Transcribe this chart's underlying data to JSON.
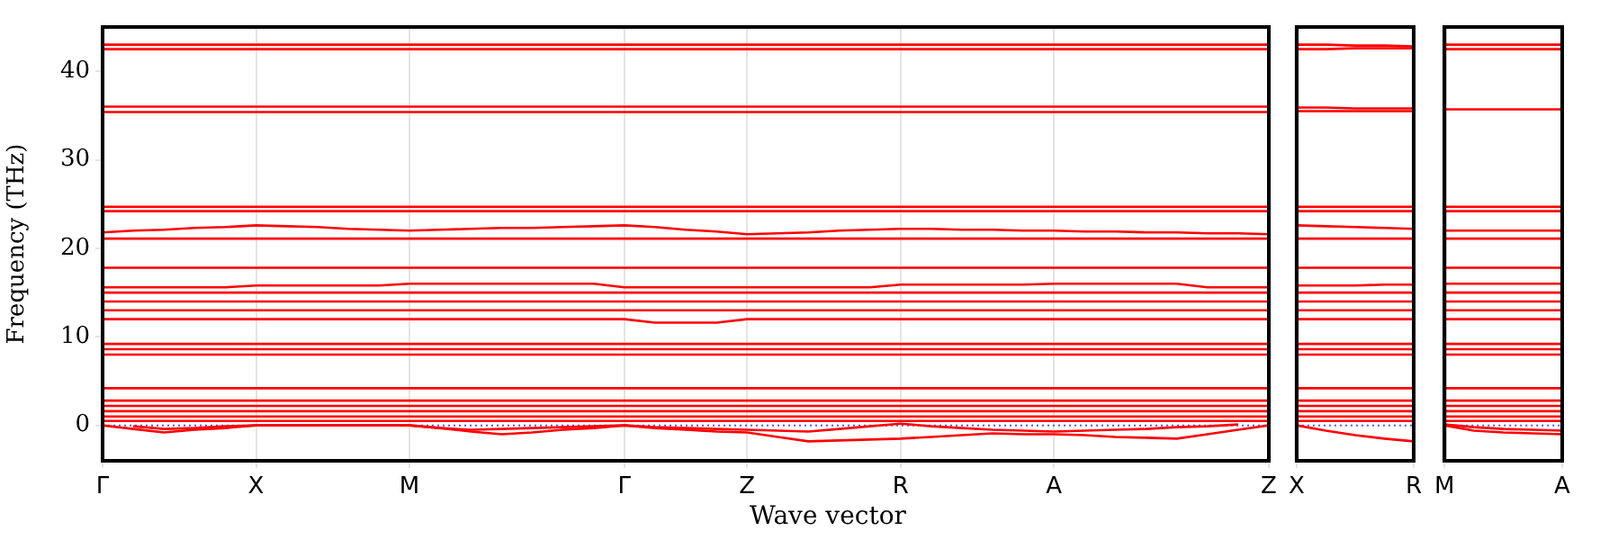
{
  "chart_data": [
    {
      "type": "line",
      "ylabel": "Frequency (THz)",
      "xlabel": "Wave vector",
      "grid": "x",
      "categories": [
        "Γ",
        null,
        null,
        null,
        null,
        "X",
        null,
        null,
        null,
        null,
        "M",
        null,
        null,
        null,
        null,
        null,
        null,
        "Γ",
        null,
        null,
        null,
        "Z",
        null,
        null,
        null,
        null,
        "R",
        null,
        null,
        null,
        null,
        "A",
        null,
        null,
        null,
        null,
        null,
        null,
        "Z"
      ],
      "ylim": [
        -4,
        45
      ],
      "yticks": [
        0,
        10,
        20,
        30,
        40
      ],
      "ref_lines": [
        {
          "axis": "y",
          "value": 0,
          "color": "#5555ff",
          "line_style": "dotted"
        }
      ],
      "series": [
        {
          "color": "#ff0000",
          "values": [
            43.0,
            43.0,
            43.0,
            43.0,
            43.0,
            43.0,
            43.0,
            43.0,
            43.0,
            43.0,
            43.0,
            43.0,
            43.0,
            43.0,
            43.0,
            43.0,
            43.0,
            43.0,
            43.0,
            43.0,
            43.0,
            43.0,
            43.0,
            43.0,
            43.0,
            43.0,
            43.0,
            43.0,
            43.0,
            43.0,
            43.0,
            43.0,
            43.0,
            43.0,
            43.0,
            43.0,
            43.0,
            43.0,
            43.0
          ]
        },
        {
          "color": "#ff0000",
          "values": [
            42.5,
            42.5,
            42.5,
            42.5,
            42.5,
            42.5,
            42.5,
            42.5,
            42.5,
            42.5,
            42.5,
            42.5,
            42.5,
            42.5,
            42.5,
            42.5,
            42.5,
            42.5,
            42.5,
            42.5,
            42.5,
            42.5,
            42.5,
            42.5,
            42.5,
            42.5,
            42.5,
            42.5,
            42.5,
            42.5,
            42.5,
            42.5,
            42.5,
            42.5,
            42.5,
            42.5,
            42.5,
            42.5,
            42.5
          ]
        },
        {
          "color": "#ff0000",
          "values": [
            36.0,
            36.0,
            36.0,
            36.0,
            36.0,
            36.0,
            36.0,
            36.0,
            36.0,
            36.0,
            36.0,
            36.0,
            36.0,
            36.0,
            36.0,
            36.0,
            36.0,
            36.0,
            36.0,
            36.0,
            36.0,
            36.0,
            36.0,
            36.0,
            36.0,
            36.0,
            36.0,
            36.0,
            36.0,
            36.0,
            36.0,
            36.0,
            36.0,
            36.0,
            36.0,
            36.0,
            36.0,
            36.0,
            36.0
          ]
        },
        {
          "color": "#ff0000",
          "values": [
            35.4,
            35.4,
            35.4,
            35.4,
            35.4,
            35.4,
            35.4,
            35.4,
            35.4,
            35.4,
            35.4,
            35.4,
            35.4,
            35.4,
            35.4,
            35.4,
            35.4,
            35.4,
            35.4,
            35.4,
            35.4,
            35.4,
            35.4,
            35.4,
            35.4,
            35.4,
            35.4,
            35.4,
            35.4,
            35.4,
            35.4,
            35.4,
            35.4,
            35.4,
            35.4,
            35.4,
            35.4,
            35.4,
            35.4
          ]
        },
        {
          "color": "#ff0000",
          "values": [
            24.7,
            24.7,
            24.7,
            24.7,
            24.7,
            24.7,
            24.7,
            24.7,
            24.7,
            24.7,
            24.7,
            24.7,
            24.7,
            24.7,
            24.7,
            24.7,
            24.7,
            24.7,
            24.7,
            24.7,
            24.7,
            24.7,
            24.7,
            24.7,
            24.7,
            24.7,
            24.7,
            24.7,
            24.7,
            24.7,
            24.7,
            24.7,
            24.7,
            24.7,
            24.7,
            24.7,
            24.7,
            24.7,
            24.7
          ]
        },
        {
          "color": "#ff0000",
          "values": [
            24.2,
            24.2,
            24.2,
            24.2,
            24.2,
            24.2,
            24.2,
            24.2,
            24.2,
            24.2,
            24.2,
            24.2,
            24.2,
            24.2,
            24.2,
            24.2,
            24.2,
            24.2,
            24.2,
            24.2,
            24.2,
            24.2,
            24.2,
            24.2,
            24.2,
            24.2,
            24.2,
            24.2,
            24.2,
            24.2,
            24.2,
            24.2,
            24.2,
            24.2,
            24.2,
            24.2,
            24.2,
            24.2,
            24.2
          ]
        },
        {
          "color": "#ff0000",
          "values": [
            21.8,
            22.0,
            22.1,
            22.3,
            22.4,
            22.6,
            22.5,
            22.4,
            22.2,
            22.1,
            22.0,
            22.1,
            22.2,
            22.3,
            22.3,
            22.4,
            22.5,
            22.6,
            22.4,
            22.1,
            21.9,
            21.6,
            21.7,
            21.8,
            22.0,
            22.1,
            22.2,
            22.2,
            22.1,
            22.1,
            22.0,
            22.0,
            21.9,
            21.9,
            21.8,
            21.8,
            21.7,
            21.7,
            21.6
          ]
        },
        {
          "color": "#ff0000",
          "values": [
            21.1,
            21.1,
            21.1,
            21.1,
            21.1,
            21.1,
            21.1,
            21.1,
            21.1,
            21.1,
            21.1,
            21.1,
            21.1,
            21.1,
            21.1,
            21.1,
            21.1,
            21.1,
            21.1,
            21.1,
            21.1,
            21.1,
            21.1,
            21.1,
            21.1,
            21.1,
            21.1,
            21.1,
            21.1,
            21.1,
            21.1,
            21.1,
            21.1,
            21.1,
            21.1,
            21.1,
            21.1,
            21.1,
            21.1
          ]
        },
        {
          "color": "#ff0000",
          "values": [
            17.8,
            17.8,
            17.8,
            17.8,
            17.8,
            17.8,
            17.8,
            17.8,
            17.8,
            17.8,
            17.8,
            17.8,
            17.8,
            17.8,
            17.8,
            17.8,
            17.8,
            17.8,
            17.8,
            17.8,
            17.8,
            17.8,
            17.8,
            17.8,
            17.8,
            17.8,
            17.8,
            17.8,
            17.8,
            17.8,
            17.8,
            17.8,
            17.8,
            17.8,
            17.8,
            17.8,
            17.8,
            17.8,
            17.8
          ]
        },
        {
          "color": "#ff0000",
          "values": [
            15.6,
            15.6,
            15.6,
            15.6,
            15.6,
            15.8,
            15.8,
            15.8,
            15.8,
            15.8,
            16.0,
            16.0,
            16.0,
            16.0,
            16.0,
            16.0,
            16.0,
            15.6,
            15.6,
            15.6,
            15.6,
            15.6,
            15.6,
            15.6,
            15.6,
            15.6,
            15.9,
            15.9,
            15.9,
            15.9,
            15.9,
            16.0,
            16.0,
            16.0,
            16.0,
            16.0,
            15.6,
            15.6,
            15.6
          ]
        },
        {
          "color": "#ff0000",
          "values": [
            15.0,
            15.0,
            15.0,
            15.0,
            15.0,
            15.0,
            15.0,
            15.0,
            15.0,
            15.0,
            15.0,
            15.0,
            15.0,
            15.0,
            15.0,
            15.0,
            15.0,
            15.0,
            15.0,
            15.0,
            15.0,
            15.0,
            15.0,
            15.0,
            15.0,
            15.0,
            15.0,
            15.0,
            15.0,
            15.0,
            15.0,
            15.0,
            15.0,
            15.0,
            15.0,
            15.0,
            15.0,
            15.0,
            15.0
          ]
        },
        {
          "color": "#ff0000",
          "values": [
            14.0,
            14.0,
            14.0,
            14.0,
            14.0,
            14.0,
            14.0,
            14.0,
            14.0,
            14.0,
            14.0,
            14.0,
            14.0,
            14.0,
            14.0,
            14.0,
            14.0,
            14.0,
            14.0,
            14.0,
            14.0,
            14.0,
            14.0,
            14.0,
            14.0,
            14.0,
            14.0,
            14.0,
            14.0,
            14.0,
            14.0,
            14.0,
            14.0,
            14.0,
            14.0,
            14.0,
            14.0,
            14.0,
            14.0
          ]
        },
        {
          "color": "#ff0000",
          "values": [
            13.0,
            13.0,
            13.0,
            13.0,
            13.0,
            13.0,
            13.0,
            13.0,
            13.0,
            13.0,
            13.0,
            13.0,
            13.0,
            13.0,
            13.0,
            13.0,
            13.0,
            13.0,
            13.0,
            13.0,
            13.0,
            13.0,
            13.0,
            13.0,
            13.0,
            13.0,
            13.0,
            13.0,
            13.0,
            13.0,
            13.0,
            13.0,
            13.0,
            13.0,
            13.0,
            13.0,
            13.0,
            13.0,
            13.0
          ]
        },
        {
          "color": "#ff0000",
          "values": [
            12.0,
            12.0,
            12.0,
            12.0,
            12.0,
            12.0,
            12.0,
            12.0,
            12.0,
            12.0,
            12.0,
            12.0,
            12.0,
            12.0,
            12.0,
            12.0,
            12.0,
            12.0,
            11.6,
            11.6,
            11.6,
            12.0,
            12.0,
            12.0,
            12.0,
            12.0,
            12.0,
            12.0,
            12.0,
            12.0,
            12.0,
            12.0,
            12.0,
            12.0,
            12.0,
            12.0,
            12.0,
            12.0,
            12.0
          ]
        },
        {
          "color": "#ff0000",
          "values": [
            9.2,
            9.2,
            9.2,
            9.2,
            9.2,
            9.2,
            9.2,
            9.2,
            9.2,
            9.2,
            9.2,
            9.2,
            9.2,
            9.2,
            9.2,
            9.2,
            9.2,
            9.2,
            9.2,
            9.2,
            9.2,
            9.2,
            9.2,
            9.2,
            9.2,
            9.2,
            9.2,
            9.2,
            9.2,
            9.2,
            9.2,
            9.2,
            9.2,
            9.2,
            9.2,
            9.2,
            9.2,
            9.2,
            9.2
          ]
        },
        {
          "color": "#ff0000",
          "values": [
            8.6,
            8.6,
            8.6,
            8.6,
            8.6,
            8.6,
            8.6,
            8.6,
            8.6,
            8.6,
            8.6,
            8.6,
            8.6,
            8.6,
            8.6,
            8.6,
            8.6,
            8.6,
            8.6,
            8.6,
            8.6,
            8.6,
            8.6,
            8.6,
            8.6,
            8.6,
            8.6,
            8.6,
            8.6,
            8.6,
            8.6,
            8.6,
            8.6,
            8.6,
            8.6,
            8.6,
            8.6,
            8.6,
            8.6
          ]
        },
        {
          "color": "#ff0000",
          "values": [
            8.0,
            8.0,
            8.0,
            8.0,
            8.0,
            8.0,
            8.0,
            8.0,
            8.0,
            8.0,
            8.0,
            8.0,
            8.0,
            8.0,
            8.0,
            8.0,
            8.0,
            8.0,
            8.0,
            8.0,
            8.0,
            8.0,
            8.0,
            8.0,
            8.0,
            8.0,
            8.0,
            8.0,
            8.0,
            8.0,
            8.0,
            8.0,
            8.0,
            8.0,
            8.0,
            8.0,
            8.0,
            8.0,
            8.0
          ]
        },
        {
          "color": "#ff0000",
          "values": [
            4.2,
            4.2,
            4.2,
            4.2,
            4.2,
            4.2,
            4.2,
            4.2,
            4.2,
            4.2,
            4.2,
            4.2,
            4.2,
            4.2,
            4.2,
            4.2,
            4.2,
            4.2,
            4.2,
            4.2,
            4.2,
            4.2,
            4.2,
            4.2,
            4.2,
            4.2,
            4.2,
            4.2,
            4.2,
            4.2,
            4.2,
            4.2,
            4.2,
            4.2,
            4.2,
            4.2,
            4.2,
            4.2,
            4.2
          ]
        },
        {
          "color": "#ff0000",
          "values": [
            2.8,
            2.8,
            2.8,
            2.8,
            2.8,
            2.8,
            2.8,
            2.8,
            2.8,
            2.8,
            2.8,
            2.8,
            2.8,
            2.8,
            2.8,
            2.8,
            2.8,
            2.8,
            2.8,
            2.8,
            2.8,
            2.8,
            2.8,
            2.8,
            2.8,
            2.8,
            2.8,
            2.8,
            2.8,
            2.8,
            2.8,
            2.8,
            2.8,
            2.8,
            2.8,
            2.8,
            2.8,
            2.8,
            2.8
          ]
        },
        {
          "color": "#ff0000",
          "values": [
            2.2,
            2.2,
            2.2,
            2.2,
            2.2,
            2.2,
            2.2,
            2.2,
            2.2,
            2.2,
            2.2,
            2.2,
            2.2,
            2.2,
            2.2,
            2.2,
            2.2,
            2.2,
            2.2,
            2.2,
            2.2,
            2.2,
            2.2,
            2.2,
            2.2,
            2.2,
            2.2,
            2.2,
            2.2,
            2.2,
            2.2,
            2.2,
            2.2,
            2.2,
            2.2,
            2.2,
            2.2,
            2.2,
            2.2
          ]
        },
        {
          "color": "#ff0000",
          "values": [
            1.6,
            1.6,
            1.6,
            1.6,
            1.6,
            1.6,
            1.6,
            1.6,
            1.6,
            1.6,
            1.6,
            1.6,
            1.6,
            1.6,
            1.6,
            1.6,
            1.6,
            1.6,
            1.6,
            1.6,
            1.6,
            1.6,
            1.6,
            1.6,
            1.6,
            1.6,
            1.6,
            1.6,
            1.6,
            1.6,
            1.6,
            1.6,
            1.6,
            1.6,
            1.6,
            1.6,
            1.6,
            1.6,
            1.6
          ]
        },
        {
          "color": "#ff0000",
          "values": [
            1.0,
            1.0,
            1.0,
            1.0,
            1.0,
            1.0,
            1.0,
            1.0,
            1.0,
            1.0,
            1.0,
            1.0,
            1.0,
            1.0,
            1.0,
            1.0,
            1.0,
            1.0,
            1.0,
            1.0,
            1.0,
            1.0,
            1.0,
            1.0,
            1.0,
            1.0,
            1.0,
            1.0,
            1.0,
            1.0,
            1.0,
            1.0,
            1.0,
            1.0,
            1.0,
            1.0,
            1.0,
            1.0,
            1.0
          ]
        },
        {
          "color": "#ff0000",
          "values": [
            0.5,
            0.5,
            0.5,
            0.5,
            0.5,
            0.5,
            0.5,
            0.5,
            0.5,
            0.5,
            0.5,
            0.5,
            0.5,
            0.5,
            0.5,
            0.5,
            0.5,
            0.5,
            0.5,
            0.5,
            0.5,
            0.5,
            0.5,
            0.5,
            0.5,
            0.5,
            0.5,
            0.5,
            0.5,
            0.5,
            0.5,
            0.5,
            0.5,
            0.5,
            0.5,
            0.5,
            0.5,
            0.5,
            0.5
          ]
        },
        {
          "color": "#ff0000",
          "values": [
            0,
            -0.4,
            -0.8,
            -0.5,
            -0.3,
            0,
            0,
            0,
            0,
            0,
            0,
            -0.3,
            -0.7,
            -1.0,
            -0.8,
            -0.5,
            -0.3,
            0,
            -0.3,
            -0.5,
            -0.7,
            -0.8,
            -1.3,
            -1.8,
            -1.7,
            -1.6,
            -1.5,
            -1.3,
            -1.1,
            -0.9,
            -1.0,
            -1.0,
            -1.1,
            -1.3,
            -1.4,
            -1.5,
            -1.0,
            -0.5,
            0
          ]
        },
        {
          "color": "#ff0000",
          "values": [
            null,
            -0.1,
            -0.4,
            -0.3,
            -0.1,
            0,
            0,
            0,
            0,
            0,
            0,
            -0.3,
            -0.5,
            -0.4,
            -0.3,
            -0.2,
            -0.1,
            0,
            -0.2,
            -0.3,
            -0.4,
            -0.5,
            -0.6,
            -0.7,
            -0.4,
            -0.1,
            0.2,
            -0.1,
            -0.3,
            -0.5,
            -0.6,
            -0.7,
            -0.6,
            -0.5,
            -0.4,
            -0.2,
            -0.1,
            0.1,
            null
          ]
        }
      ]
    },
    {
      "type": "line",
      "tick_labels": "x",
      "categories": [
        "X",
        null,
        null,
        null,
        "R"
      ],
      "ylim": [
        -4,
        45
      ],
      "ref_lines": [
        {
          "axis": "y",
          "value": 0,
          "color": "#5555ff",
          "line_style": "dotted"
        }
      ],
      "series": [
        {
          "color": "#ff0000",
          "values": [
            43.0,
            43.0,
            42.9,
            42.9,
            42.8
          ]
        },
        {
          "color": "#ff0000",
          "values": [
            42.5,
            42.5,
            42.6,
            42.6,
            42.6
          ]
        },
        {
          "color": "#ff0000",
          "values": [
            35.9,
            35.9,
            35.8,
            35.8,
            35.8
          ]
        },
        {
          "color": "#ff0000",
          "values": [
            35.5,
            35.5,
            35.5,
            35.5,
            35.5
          ]
        },
        {
          "color": "#ff0000",
          "values": [
            24.7,
            24.7,
            24.7,
            24.7,
            24.7
          ]
        },
        {
          "color": "#ff0000",
          "values": [
            24.2,
            24.2,
            24.2,
            24.2,
            24.2
          ]
        },
        {
          "color": "#ff0000",
          "values": [
            22.6,
            22.5,
            22.4,
            22.3,
            22.2
          ]
        },
        {
          "color": "#ff0000",
          "values": [
            21.1,
            21.1,
            21.1,
            21.1,
            21.1
          ]
        },
        {
          "color": "#ff0000",
          "values": [
            17.8,
            17.8,
            17.8,
            17.8,
            17.8
          ]
        },
        {
          "color": "#ff0000",
          "values": [
            15.8,
            15.8,
            15.8,
            15.9,
            15.9
          ]
        },
        {
          "color": "#ff0000",
          "values": [
            15.0,
            15.0,
            15.0,
            15.0,
            15.0
          ]
        },
        {
          "color": "#ff0000",
          "values": [
            14.0,
            14.0,
            14.0,
            14.0,
            14.0
          ]
        },
        {
          "color": "#ff0000",
          "values": [
            13.0,
            13.0,
            13.0,
            13.0,
            13.0
          ]
        },
        {
          "color": "#ff0000",
          "values": [
            12.0,
            12.0,
            12.0,
            12.0,
            12.0
          ]
        },
        {
          "color": "#ff0000",
          "values": [
            9.2,
            9.2,
            9.2,
            9.2,
            9.2
          ]
        },
        {
          "color": "#ff0000",
          "values": [
            8.6,
            8.6,
            8.6,
            8.6,
            8.6
          ]
        },
        {
          "color": "#ff0000",
          "values": [
            8.0,
            8.0,
            8.0,
            8.0,
            8.0
          ]
        },
        {
          "color": "#ff0000",
          "values": [
            4.2,
            4.2,
            4.2,
            4.2,
            4.2
          ]
        },
        {
          "color": "#ff0000",
          "values": [
            2.8,
            2.8,
            2.8,
            2.8,
            2.8
          ]
        },
        {
          "color": "#ff0000",
          "values": [
            2.2,
            2.2,
            2.2,
            2.2,
            2.2
          ]
        },
        {
          "color": "#ff0000",
          "values": [
            1.6,
            1.6,
            1.6,
            1.6,
            1.6
          ]
        },
        {
          "color": "#ff0000",
          "values": [
            1.0,
            1.0,
            1.0,
            1.0,
            1.0
          ]
        },
        {
          "color": "#ff0000",
          "values": [
            0.5,
            0.5,
            0.5,
            0.5,
            0.5
          ]
        },
        {
          "color": "#ff0000",
          "values": [
            0,
            -0.6,
            -1.1,
            -1.5,
            -1.8
          ]
        }
      ]
    },
    {
      "type": "line",
      "tick_labels": "x",
      "categories": [
        "M",
        null,
        null,
        null,
        "A"
      ],
      "ylim": [
        -4,
        45
      ],
      "ref_lines": [
        {
          "axis": "y",
          "value": 0,
          "color": "#5555ff",
          "line_style": "dotted"
        }
      ],
      "series": [
        {
          "color": "#ff0000",
          "values": [
            43.0,
            43.0,
            43.0,
            43.0,
            43.0
          ]
        },
        {
          "color": "#ff0000",
          "values": [
            42.5,
            42.5,
            42.5,
            42.5,
            42.5
          ]
        },
        {
          "color": "#ff0000",
          "values": [
            35.7,
            35.7,
            35.7,
            35.7,
            35.7
          ]
        },
        {
          "color": "#ff0000",
          "values": [
            24.7,
            24.7,
            24.7,
            24.7,
            24.7
          ]
        },
        {
          "color": "#ff0000",
          "values": [
            24.2,
            24.2,
            24.2,
            24.2,
            24.2
          ]
        },
        {
          "color": "#ff0000",
          "values": [
            22.0,
            22.0,
            22.0,
            22.0,
            22.0
          ]
        },
        {
          "color": "#ff0000",
          "values": [
            21.1,
            21.1,
            21.1,
            21.1,
            21.1
          ]
        },
        {
          "color": "#ff0000",
          "values": [
            17.8,
            17.8,
            17.8,
            17.8,
            17.8
          ]
        },
        {
          "color": "#ff0000",
          "values": [
            16.0,
            16.0,
            16.0,
            16.0,
            16.0
          ]
        },
        {
          "color": "#ff0000",
          "values": [
            15.0,
            15.0,
            15.0,
            15.0,
            15.0
          ]
        },
        {
          "color": "#ff0000",
          "values": [
            14.0,
            14.0,
            14.0,
            14.0,
            14.0
          ]
        },
        {
          "color": "#ff0000",
          "values": [
            13.0,
            13.0,
            13.0,
            13.0,
            13.0
          ]
        },
        {
          "color": "#ff0000",
          "values": [
            12.0,
            12.0,
            12.0,
            12.0,
            12.0
          ]
        },
        {
          "color": "#ff0000",
          "values": [
            9.2,
            9.2,
            9.2,
            9.2,
            9.2
          ]
        },
        {
          "color": "#ff0000",
          "values": [
            8.6,
            8.6,
            8.6,
            8.6,
            8.6
          ]
        },
        {
          "color": "#ff0000",
          "values": [
            8.0,
            8.0,
            8.0,
            8.0,
            8.0
          ]
        },
        {
          "color": "#ff0000",
          "values": [
            4.2,
            4.2,
            4.2,
            4.2,
            4.2
          ]
        },
        {
          "color": "#ff0000",
          "values": [
            2.8,
            2.8,
            2.8,
            2.8,
            2.8
          ]
        },
        {
          "color": "#ff0000",
          "values": [
            2.2,
            2.2,
            2.2,
            2.2,
            2.2
          ]
        },
        {
          "color": "#ff0000",
          "values": [
            1.6,
            1.6,
            1.6,
            1.6,
            1.6
          ]
        },
        {
          "color": "#ff0000",
          "values": [
            1.0,
            1.0,
            1.0,
            1.0,
            1.0
          ]
        },
        {
          "color": "#ff0000",
          "values": [
            0.5,
            0.5,
            0.5,
            0.5,
            0.5
          ]
        },
        {
          "color": "#ff0000",
          "values": [
            0,
            -0.6,
            -0.8,
            -0.9,
            -1.0
          ]
        },
        {
          "color": "#ff0000",
          "values": [
            0.1,
            -0.2,
            -0.4,
            -0.5,
            -0.6
          ]
        }
      ]
    }
  ]
}
